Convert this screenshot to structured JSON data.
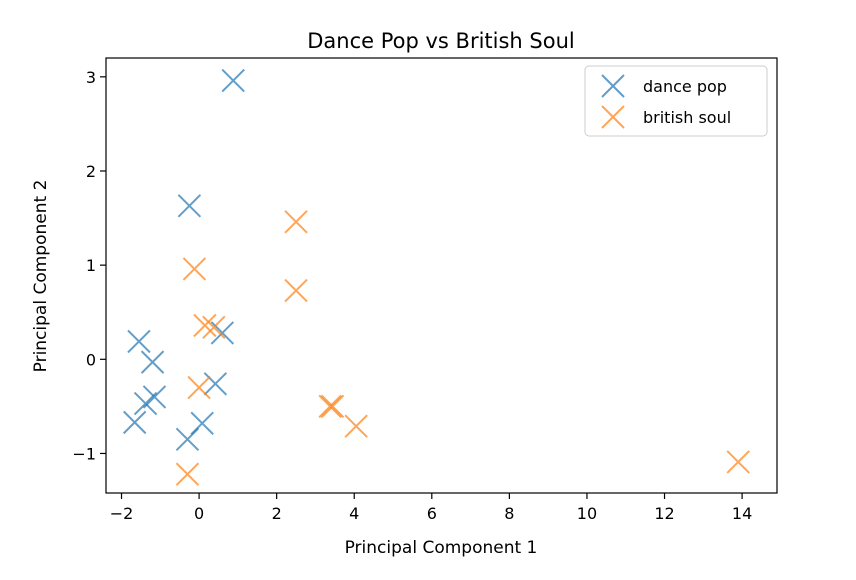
{
  "chart_data": {
    "type": "scatter",
    "title": "Dance Pop vs British Soul",
    "xlabel": "Principal Component 1",
    "ylabel": "Principal Component 2",
    "xlim": [
      -2.4,
      14.9
    ],
    "ylim": [
      -1.42,
      3.2
    ],
    "xticks": [
      -2,
      0,
      2,
      4,
      6,
      8,
      10,
      12,
      14
    ],
    "yticks": [
      -1,
      0,
      1,
      2,
      3
    ],
    "xtick_labels": [
      "−2",
      "0",
      "2",
      "4",
      "6",
      "8",
      "10",
      "12",
      "14"
    ],
    "ytick_labels": [
      "−1",
      "0",
      "1",
      "2",
      "3"
    ],
    "grid": false,
    "legend_position": "top-right",
    "marker": "x",
    "series": [
      {
        "name": "dance pop",
        "color": "#1f77b4",
        "points": [
          [
            0.88,
            2.96
          ],
          [
            -0.25,
            1.63
          ],
          [
            -1.55,
            0.19
          ],
          [
            -1.2,
            -0.03
          ],
          [
            0.6,
            0.28
          ],
          [
            0.42,
            -0.26
          ],
          [
            -1.15,
            -0.4
          ],
          [
            -1.38,
            -0.47
          ],
          [
            -1.66,
            -0.67
          ],
          [
            0.08,
            -0.68
          ],
          [
            -0.3,
            -0.85
          ]
        ]
      },
      {
        "name": "british soul",
        "color": "#ff7f0e",
        "points": [
          [
            2.5,
            1.46
          ],
          [
            -0.12,
            0.96
          ],
          [
            2.5,
            0.73
          ],
          [
            0.15,
            0.36
          ],
          [
            0.38,
            0.34
          ],
          [
            0.0,
            -0.3
          ],
          [
            3.38,
            -0.5
          ],
          [
            3.44,
            -0.5
          ],
          [
            4.05,
            -0.71
          ],
          [
            13.9,
            -1.09
          ],
          [
            -0.3,
            -1.22
          ]
        ]
      }
    ]
  }
}
